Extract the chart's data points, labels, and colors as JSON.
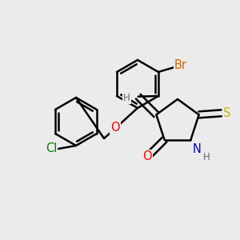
{
  "background_color": "#ebebeb",
  "bond_color": "#000000",
  "bond_width": 1.8,
  "atom_colors": {
    "O": "#ff0000",
    "N": "#0000cd",
    "S": "#b8b800",
    "Cl": "#008000",
    "Br": "#cc6600",
    "H": "#666666",
    "C": "#000000"
  },
  "font_size": 9.5,
  "figsize": [
    3.0,
    3.0
  ],
  "dpi": 100
}
